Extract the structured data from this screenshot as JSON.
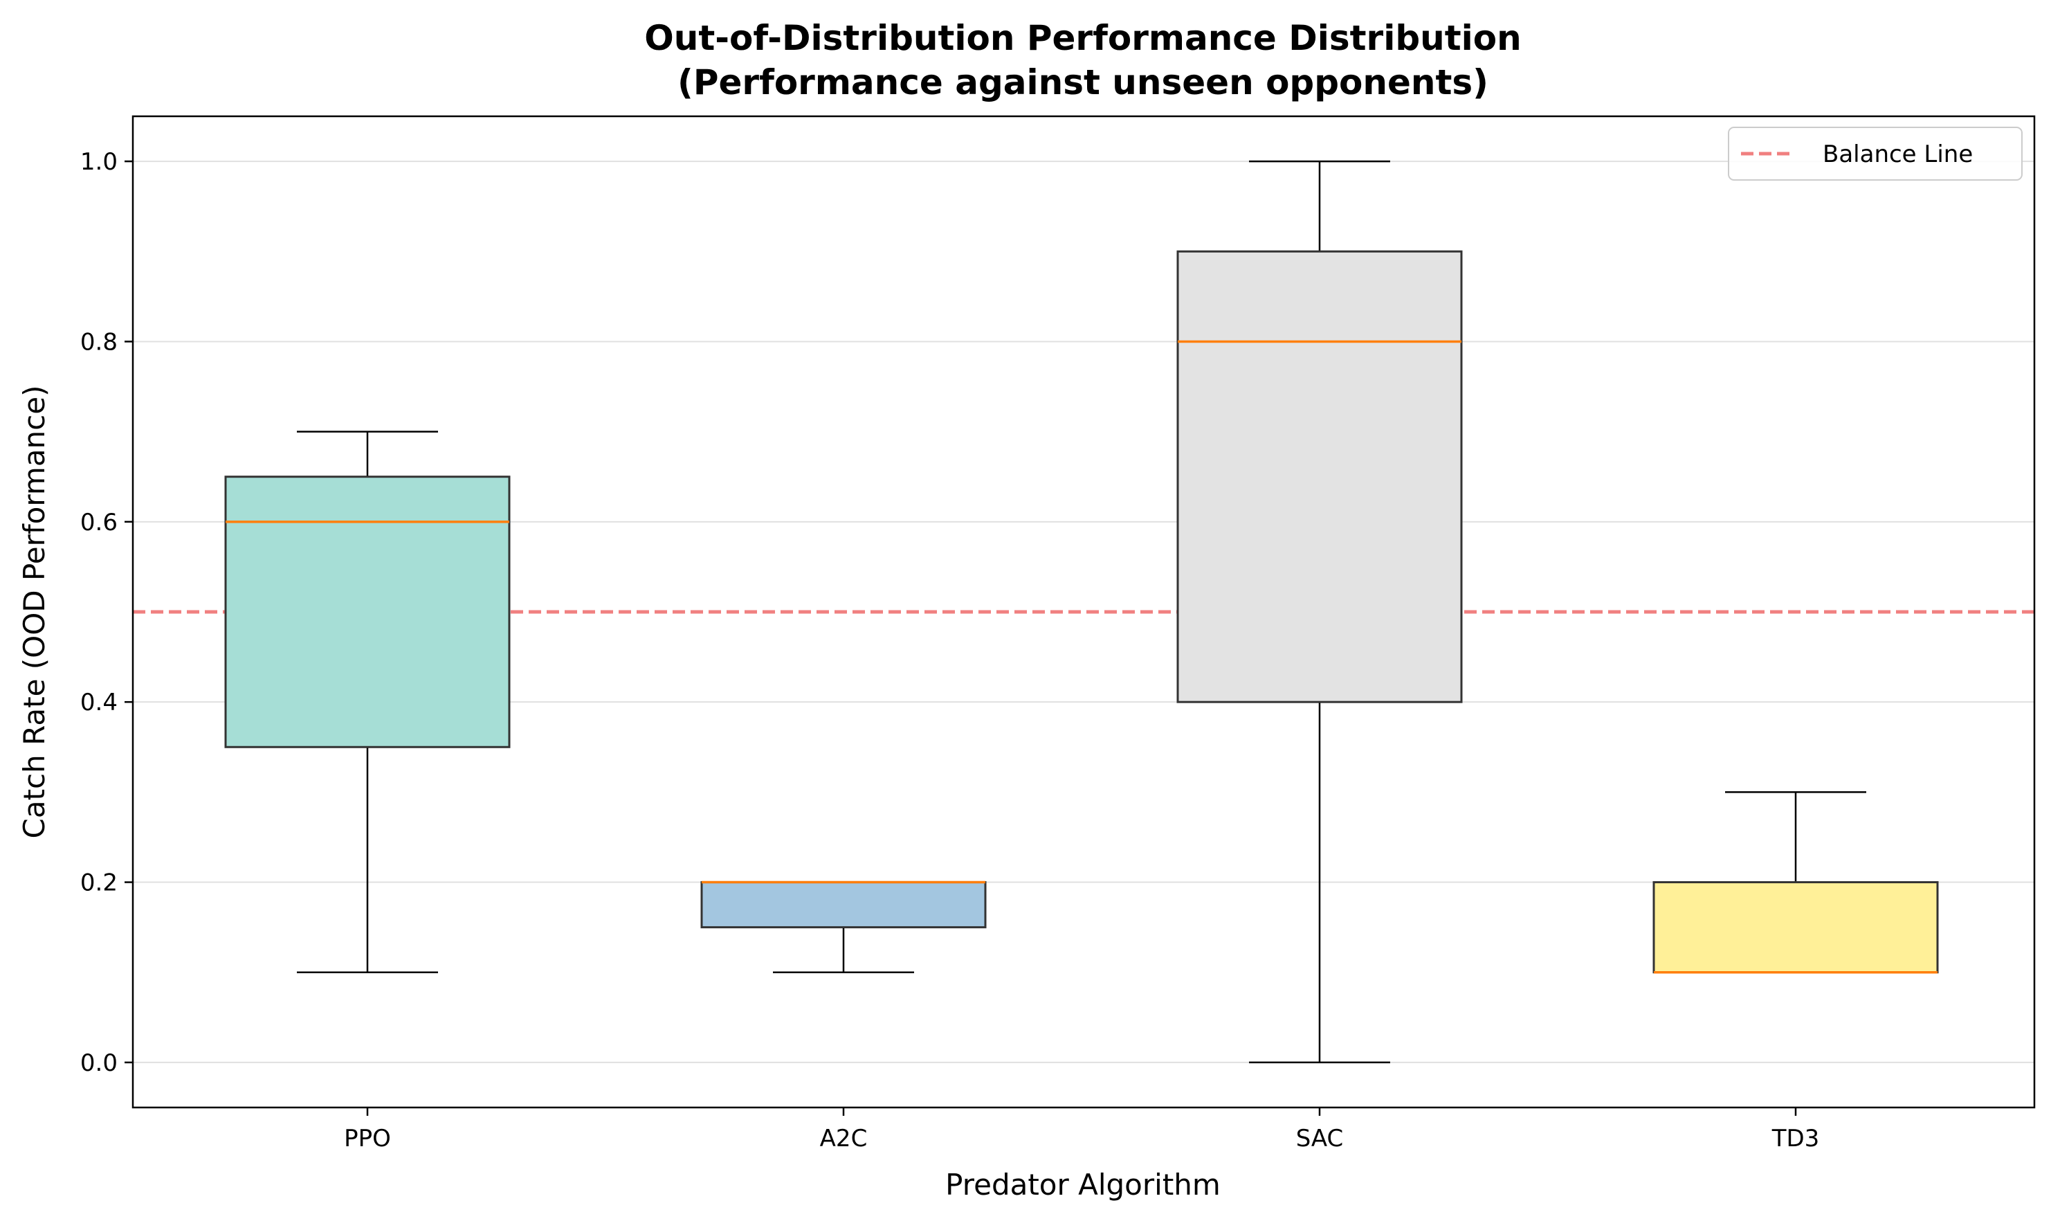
{
  "chart_data": {
    "type": "box",
    "title": "Out-of-Distribution Performance Distribution",
    "subtitle": "(Performance against unseen opponents)",
    "xlabel": "Predator Algorithm",
    "ylabel": "Catch Rate (OOD Performance)",
    "categories": [
      "PPO",
      "A2C",
      "SAC",
      "TD3"
    ],
    "ylim": [
      -0.05,
      1.05
    ],
    "yticks": [
      0.0,
      0.2,
      0.4,
      0.6,
      0.8,
      1.0
    ],
    "ytick_labels": [
      "0.0",
      "0.2",
      "0.4",
      "0.6",
      "0.8",
      "1.0"
    ],
    "grid": "y",
    "boxes": [
      {
        "category": "PPO",
        "whisker_low": 0.1,
        "q1": 0.35,
        "median": 0.6,
        "q3": 0.65,
        "whisker_high": 0.7,
        "color": "#a6ded6"
      },
      {
        "category": "A2C",
        "whisker_low": 0.1,
        "q1": 0.15,
        "median": 0.2,
        "q3": 0.2,
        "whisker_high": 0.2,
        "color": "#a3c6e0"
      },
      {
        "category": "SAC",
        "whisker_low": 0.0,
        "q1": 0.4,
        "median": 0.8,
        "q3": 0.9,
        "whisker_high": 1.0,
        "color": "#e3e3e3"
      },
      {
        "category": "TD3",
        "whisker_low": 0.1,
        "q1": 0.1,
        "median": 0.1,
        "q3": 0.2,
        "whisker_high": 0.3,
        "color": "#fff098"
      }
    ],
    "reference_line": {
      "name": "Balance Line",
      "y": 0.5,
      "color": "#f08080",
      "style": "dashed"
    },
    "legend": {
      "position": "top-right",
      "entries": [
        "Balance Line"
      ]
    },
    "median_color": "#ff7f0e"
  }
}
